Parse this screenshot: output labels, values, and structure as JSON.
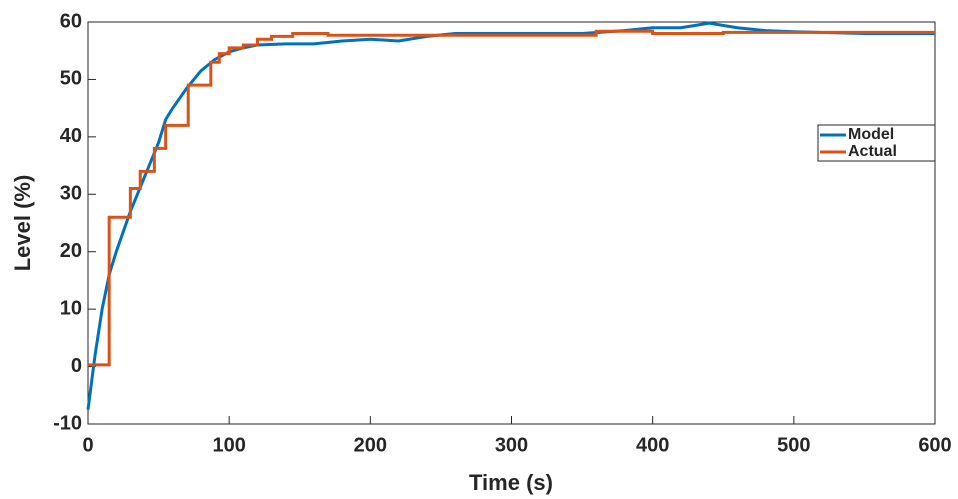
{
  "chart_data": {
    "type": "line",
    "xlabel": "Time (s)",
    "ylabel": "Level (%)",
    "xlim": [
      0,
      600
    ],
    "xticks": [
      0,
      100,
      200,
      300,
      400,
      500,
      600
    ],
    "ylim": [
      -10,
      60
    ],
    "yticks": [
      -10,
      0,
      10,
      20,
      30,
      40,
      50,
      60
    ],
    "grid": false,
    "legend": "right",
    "series": [
      {
        "name": "Model",
        "color": "#0072bd",
        "x": [
          0,
          5,
          10,
          15,
          20,
          30,
          40,
          50,
          55,
          60,
          70,
          80,
          90,
          100,
          110,
          120,
          140,
          160,
          180,
          200,
          220,
          240,
          260,
          300,
          350,
          380,
          400,
          420,
          440,
          460,
          480,
          500,
          550,
          600
        ],
        "values": [
          -7.5,
          2,
          10,
          16,
          20,
          27,
          33,
          39,
          43,
          45,
          48.5,
          51.5,
          53.5,
          54.8,
          55.5,
          56,
          56.2,
          56.2,
          56.7,
          57,
          56.7,
          57.5,
          58,
          58,
          58,
          58.5,
          59,
          59,
          59.8,
          59,
          58.5,
          58.3,
          58,
          58
        ]
      },
      {
        "name": "Actual",
        "color": "#d95319",
        "x": [
          0,
          15,
          15,
          30,
          30,
          37,
          37,
          47,
          47,
          55,
          55,
          71,
          71,
          87,
          87,
          93,
          93,
          100,
          100,
          110,
          110,
          120,
          120,
          130,
          130,
          145,
          145,
          170,
          170,
          360,
          360,
          400,
          400,
          450,
          450,
          600
        ],
        "values": [
          0.3,
          0.3,
          26,
          26,
          31,
          31,
          34,
          34,
          38,
          38,
          42,
          42,
          49,
          49,
          53,
          53,
          54.5,
          54.5,
          55.5,
          55.5,
          56,
          56,
          57,
          57,
          57.5,
          57.5,
          58,
          58,
          57.7,
          57.7,
          58.4,
          58.4,
          58,
          58,
          58.2,
          58.2
        ]
      }
    ]
  }
}
